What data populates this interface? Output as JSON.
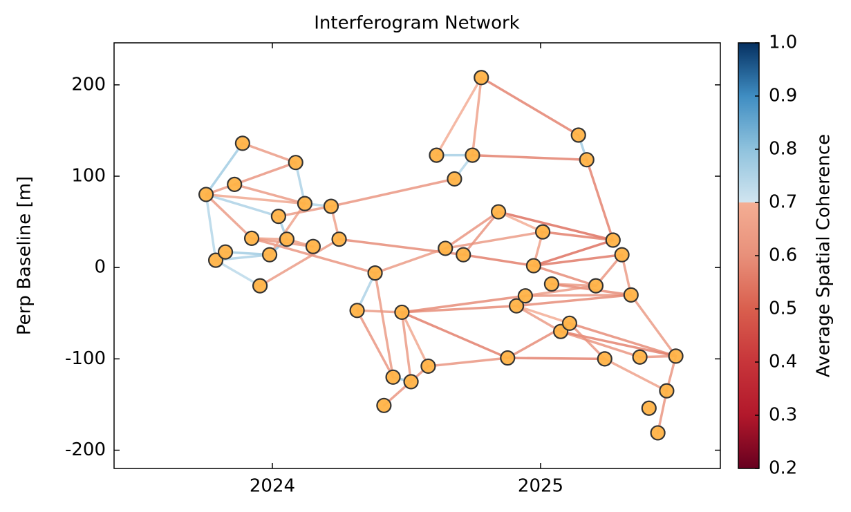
{
  "chart_data": {
    "type": "network",
    "title": "Interferogram Network",
    "ylabel": "Perp Baseline [m]",
    "colorbar_label": "Average Spatial Coherence",
    "xlim": [
      2023.41,
      2025.67
    ],
    "xticks": [
      2024,
      2025
    ],
    "ylim": [
      -220,
      246
    ],
    "yticks": [
      -200,
      -100,
      0,
      100,
      200
    ],
    "clim": [
      0.2,
      1.0
    ],
    "cticks": [
      {
        "value": 0.2,
        "label": "0.2"
      },
      {
        "value": 0.3,
        "label": "0.3"
      },
      {
        "value": 0.4,
        "label": "0.4"
      },
      {
        "value": 0.5,
        "label": "0.5"
      },
      {
        "value": 0.6,
        "label": "0.6"
      },
      {
        "value": 0.7,
        "label": "0.7"
      },
      {
        "value": 0.8,
        "label": "0.8"
      },
      {
        "value": 0.9,
        "label": "0.9"
      },
      {
        "value": 1.0,
        "label": "1.0"
      }
    ],
    "colormap": [
      [
        0.2,
        "#67001f"
      ],
      [
        0.3,
        "#b2182b"
      ],
      [
        0.4,
        "#c7353a"
      ],
      [
        0.5,
        "#d95f4e"
      ],
      [
        0.6,
        "#e8907a"
      ],
      [
        0.7,
        "#f4ae94"
      ],
      [
        0.7,
        "#d1e5f0"
      ],
      [
        0.8,
        "#8fc2dd"
      ],
      [
        0.9,
        "#3f8dc2"
      ],
      [
        1.0,
        "#053061"
      ]
    ],
    "node_color": "#ffb347",
    "nodes": {
      "x": [
        2023.753,
        2023.789,
        2023.825,
        2023.859,
        2023.889,
        2023.923,
        2023.954,
        2023.99,
        2024.023,
        2024.054,
        2024.087,
        2024.121,
        2024.152,
        2024.219,
        2024.249,
        2024.316,
        2024.383,
        2024.416,
        2024.45,
        2024.483,
        2024.517,
        2024.581,
        2024.612,
        2024.645,
        2024.679,
        2024.712,
        2024.746,
        2024.779,
        2024.843,
        2024.877,
        2024.91,
        2024.943,
        2024.974,
        2025.008,
        2025.041,
        2025.075,
        2025.108,
        2025.141,
        2025.172,
        2025.206,
        2025.239,
        2025.27,
        2025.303,
        2025.337,
        2025.37,
        2025.404,
        2025.437,
        2025.47,
        2025.504
      ],
      "y": [
        80,
        8,
        17,
        91,
        136,
        32,
        -20,
        14,
        56,
        31,
        115,
        70,
        23,
        67,
        31,
        -47,
        -6,
        -151,
        -120,
        -49,
        -125,
        -108,
        123,
        21,
        97,
        14,
        123,
        208,
        61,
        -99,
        -42,
        -31,
        2,
        39,
        -18,
        -70,
        -61,
        145,
        118,
        -20,
        -100,
        30,
        14,
        -30,
        -98,
        -154,
        -181,
        -135,
        -97
      ]
    },
    "edges": [
      {
        "source": 0,
        "target": 1,
        "coherence": 0.75
      },
      {
        "source": 0,
        "target": 8,
        "coherence": 0.76
      },
      {
        "source": 1,
        "target": 7,
        "coherence": 0.76
      },
      {
        "source": 2,
        "target": 7,
        "coherence": 0.78
      },
      {
        "source": 1,
        "target": 6,
        "coherence": 0.74
      },
      {
        "source": 8,
        "target": 9,
        "coherence": 0.78
      },
      {
        "source": 7,
        "target": 9,
        "coherence": 0.8
      },
      {
        "source": 10,
        "target": 11,
        "coherence": 0.76
      },
      {
        "source": 11,
        "target": 13,
        "coherence": 0.75
      },
      {
        "source": 15,
        "target": 16,
        "coherence": 0.76
      },
      {
        "source": 22,
        "target": 26,
        "coherence": 0.77
      },
      {
        "source": 24,
        "target": 26,
        "coherence": 0.75
      },
      {
        "source": 37,
        "target": 38,
        "coherence": 0.78
      },
      {
        "source": 30,
        "target": 31,
        "coherence": 0.8
      },
      {
        "source": 18,
        "target": 20,
        "coherence": 0.8
      },
      {
        "source": 0,
        "target": 4,
        "coherence": 0.78
      },
      {
        "source": 0,
        "target": 3,
        "coherence": 0.62
      },
      {
        "source": 0,
        "target": 5,
        "coherence": 0.62
      },
      {
        "source": 0,
        "target": 11,
        "coherence": 0.66
      },
      {
        "source": 3,
        "target": 10,
        "coherence": 0.6
      },
      {
        "source": 4,
        "target": 10,
        "coherence": 0.62
      },
      {
        "source": 3,
        "target": 11,
        "coherence": 0.62
      },
      {
        "source": 5,
        "target": 12,
        "coherence": 0.62
      },
      {
        "source": 5,
        "target": 9,
        "coherence": 0.65
      },
      {
        "source": 5,
        "target": 16,
        "coherence": 0.6
      },
      {
        "source": 6,
        "target": 14,
        "coherence": 0.62
      },
      {
        "source": 7,
        "target": 11,
        "coherence": 0.65
      },
      {
        "source": 8,
        "target": 13,
        "coherence": 0.62
      },
      {
        "source": 9,
        "target": 12,
        "coherence": 0.64
      },
      {
        "source": 13,
        "target": 14,
        "coherence": 0.64
      },
      {
        "source": 13,
        "target": 24,
        "coherence": 0.6
      },
      {
        "source": 14,
        "target": 25,
        "coherence": 0.58
      },
      {
        "source": 16,
        "target": 23,
        "coherence": 0.62
      },
      {
        "source": 16,
        "target": 18,
        "coherence": 0.62
      },
      {
        "source": 15,
        "target": 19,
        "coherence": 0.62
      },
      {
        "source": 15,
        "target": 18,
        "coherence": 0.6
      },
      {
        "source": 19,
        "target": 21,
        "coherence": 0.66
      },
      {
        "source": 19,
        "target": 20,
        "coherence": 0.62
      },
      {
        "source": 19,
        "target": 30,
        "coherence": 0.58
      },
      {
        "source": 19,
        "target": 29,
        "coherence": 0.55
      },
      {
        "source": 17,
        "target": 21,
        "coherence": 0.6
      },
      {
        "source": 21,
        "target": 29,
        "coherence": 0.6
      },
      {
        "source": 23,
        "target": 28,
        "coherence": 0.6
      },
      {
        "source": 23,
        "target": 33,
        "coherence": 0.62
      },
      {
        "source": 25,
        "target": 32,
        "coherence": 0.55
      },
      {
        "source": 25,
        "target": 28,
        "coherence": 0.6
      },
      {
        "source": 28,
        "target": 41,
        "coherence": 0.52
      },
      {
        "source": 28,
        "target": 33,
        "coherence": 0.68
      },
      {
        "source": 22,
        "target": 27,
        "coherence": 0.68
      },
      {
        "source": 26,
        "target": 27,
        "coherence": 0.64
      },
      {
        "source": 27,
        "target": 37,
        "coherence": 0.56
      },
      {
        "source": 26,
        "target": 38,
        "coherence": 0.56
      },
      {
        "source": 38,
        "target": 41,
        "coherence": 0.56
      },
      {
        "source": 32,
        "target": 41,
        "coherence": 0.52
      },
      {
        "source": 32,
        "target": 42,
        "coherence": 0.54
      },
      {
        "source": 32,
        "target": 33,
        "coherence": 0.64
      },
      {
        "source": 32,
        "target": 39,
        "coherence": 0.58
      },
      {
        "source": 33,
        "target": 41,
        "coherence": 0.55
      },
      {
        "source": 34,
        "target": 39,
        "coherence": 0.62
      },
      {
        "source": 34,
        "target": 43,
        "coherence": 0.58
      },
      {
        "source": 31,
        "target": 43,
        "coherence": 0.6
      },
      {
        "source": 30,
        "target": 43,
        "coherence": 0.58
      },
      {
        "source": 31,
        "target": 39,
        "coherence": 0.62
      },
      {
        "source": 30,
        "target": 36,
        "coherence": 0.68
      },
      {
        "source": 30,
        "target": 35,
        "coherence": 0.62
      },
      {
        "source": 35,
        "target": 44,
        "coherence": 0.6
      },
      {
        "source": 36,
        "target": 48,
        "coherence": 0.58
      },
      {
        "source": 35,
        "target": 48,
        "coherence": 0.56
      },
      {
        "source": 36,
        "target": 40,
        "coherence": 0.6
      },
      {
        "source": 29,
        "target": 40,
        "coherence": 0.56
      },
      {
        "source": 29,
        "target": 36,
        "coherence": 0.58
      },
      {
        "source": 42,
        "target": 43,
        "coherence": 0.62
      },
      {
        "source": 39,
        "target": 42,
        "coherence": 0.6
      },
      {
        "source": 43,
        "target": 48,
        "coherence": 0.62
      },
      {
        "source": 44,
        "target": 48,
        "coherence": 0.6
      },
      {
        "source": 40,
        "target": 47,
        "coherence": 0.64
      },
      {
        "source": 47,
        "target": 48,
        "coherence": 0.6
      },
      {
        "source": 46,
        "target": 47,
        "coherence": 0.6
      },
      {
        "source": 19,
        "target": 31,
        "coherence": 0.58
      }
    ]
  }
}
